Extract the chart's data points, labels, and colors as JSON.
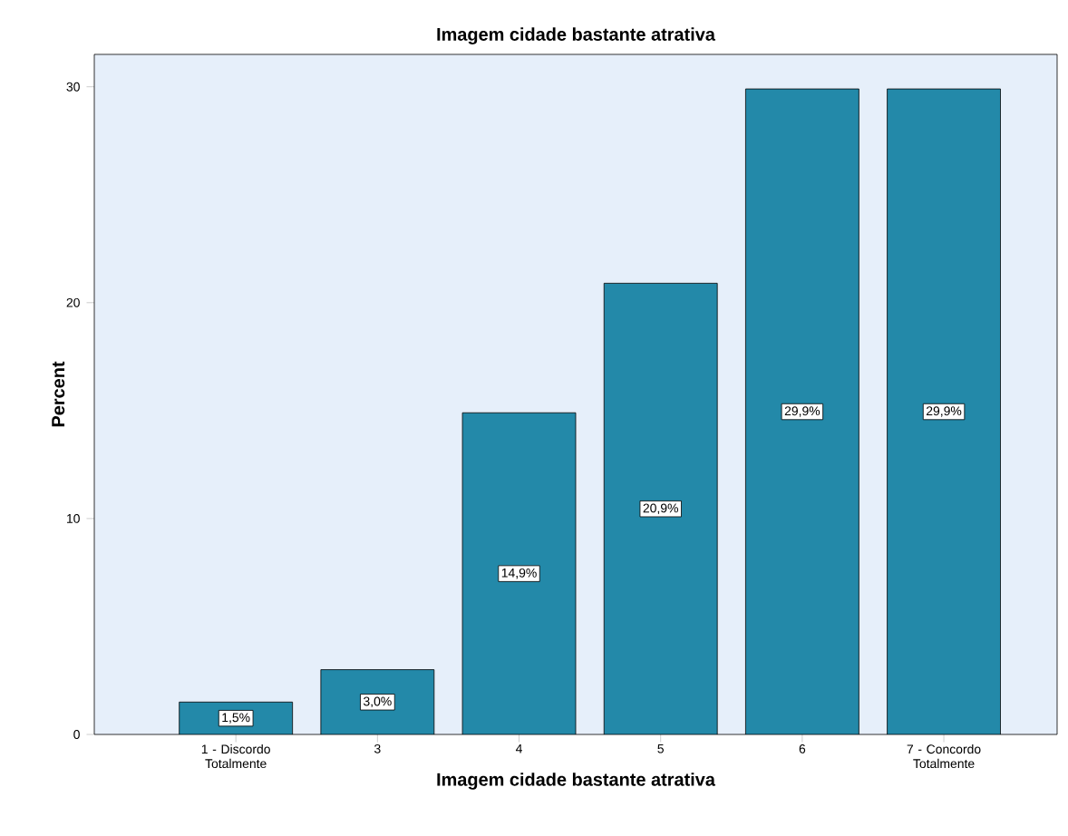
{
  "chart_data": {
    "type": "bar",
    "title": "Imagem cidade bastante atrativa",
    "xlabel": "Imagem cidade bastante atrativa",
    "ylabel": "Percent",
    "categories": [
      "1 - Discordo Totalmente",
      "3",
      "4",
      "5",
      "6",
      "7 - Concordo Totalmente"
    ],
    "values": [
      1.5,
      3.0,
      14.9,
      20.9,
      29.9,
      29.9
    ],
    "value_labels": [
      "1,5%",
      "3,0%",
      "14,9%",
      "20,9%",
      "29,9%",
      "29,9%"
    ],
    "color": "#2389a9",
    "ylim": [
      0,
      31.5
    ],
    "yticks": [
      0,
      10,
      20,
      30
    ]
  }
}
